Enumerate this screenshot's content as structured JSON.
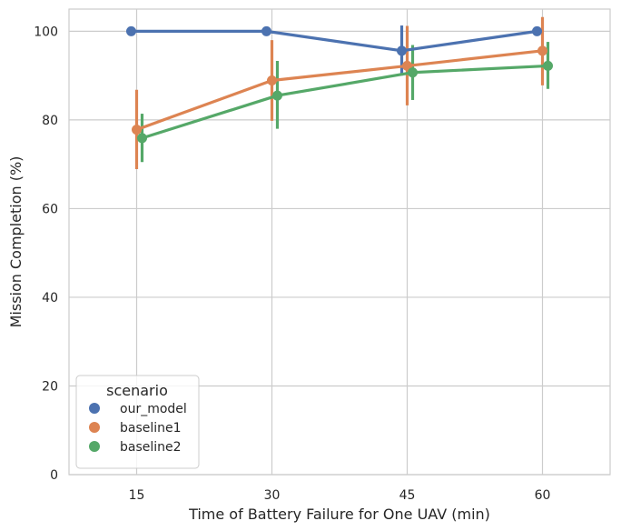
{
  "chart_data": {
    "type": "line",
    "subtype": "pointplot-with-error-bars",
    "categories": [
      "15",
      "30",
      "45",
      "60"
    ],
    "xlabel": "Time of Battery Failure for One UAV (min)",
    "ylabel": "Mission Completion (%)",
    "ylim": [
      0,
      105
    ],
    "yticks": [
      0,
      20,
      40,
      60,
      80,
      100
    ],
    "grid": true,
    "legend": {
      "title": "scenario",
      "placement": "lower-left"
    },
    "series": [
      {
        "name": "our_model",
        "color": "#4c72b0",
        "values": [
          100,
          100,
          95.6,
          100
        ],
        "ci_low": [
          100,
          100,
          90,
          100
        ],
        "ci_high": [
          100,
          100,
          101.3,
          100
        ]
      },
      {
        "name": "baseline1",
        "color": "#dd8452",
        "values": [
          77.8,
          88.9,
          92.2,
          95.6
        ],
        "ci_low": [
          68.9,
          79.8,
          83.3,
          87.8
        ],
        "ci_high": [
          86.8,
          98,
          101.2,
          103.2
        ]
      },
      {
        "name": "baseline2",
        "color": "#55a868",
        "values": [
          75.9,
          85.5,
          90.7,
          92.2
        ],
        "ci_low": [
          70.5,
          78,
          84.5,
          87
        ],
        "ci_high": [
          81.4,
          93.3,
          96.9,
          97.6
        ]
      }
    ]
  }
}
